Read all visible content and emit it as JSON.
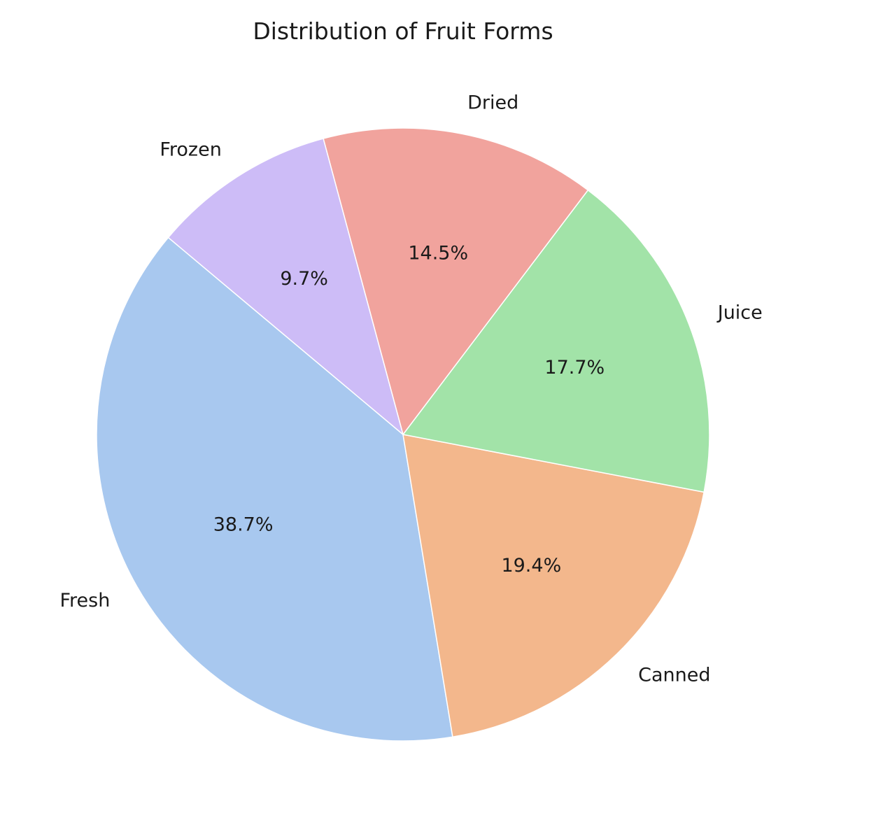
{
  "chart_data": {
    "type": "pie",
    "title": "Distribution of Fruit Forms",
    "categories": [
      "Fresh",
      "Canned",
      "Juice",
      "Dried",
      "Frozen"
    ],
    "values": [
      38.7,
      19.4,
      17.7,
      14.5,
      9.7
    ],
    "percent_labels": [
      "38.7%",
      "19.4%",
      "17.7%",
      "14.5%",
      "9.7%"
    ],
    "colors": [
      "#a8c8ef",
      "#f3b78c",
      "#a2e3a8",
      "#f1a39d",
      "#cdbcf7"
    ],
    "start_angle_deg": 140,
    "direction": "counterclockwise"
  }
}
